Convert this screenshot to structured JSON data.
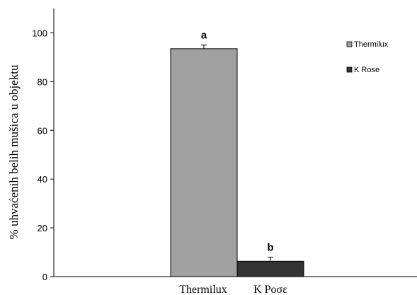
{
  "chart_data": {
    "type": "bar",
    "categories": [
      "Thermilux",
      "K Rose"
    ],
    "category_tick_labels": [
      "Thermilux",
      "K Ροσε"
    ],
    "series": [
      {
        "name": "Thermilux",
        "values": [
          93.5,
          null
        ],
        "error": [
          1.5,
          null
        ],
        "color": "#a0a0a0"
      },
      {
        "name": "K Rose",
        "values": [
          null,
          6.3
        ],
        "error": [
          null,
          1.7
        ],
        "color": "#333333"
      }
    ],
    "significance_labels": [
      "a",
      "b"
    ],
    "ylabel": "% uhvaćenih belih mušica u objektu",
    "xlabel": "",
    "title": "",
    "ylim": [
      0,
      110
    ],
    "yticks": [
      0,
      20,
      40,
      60,
      80,
      100
    ],
    "legend_position": "top-right",
    "grid": false
  }
}
